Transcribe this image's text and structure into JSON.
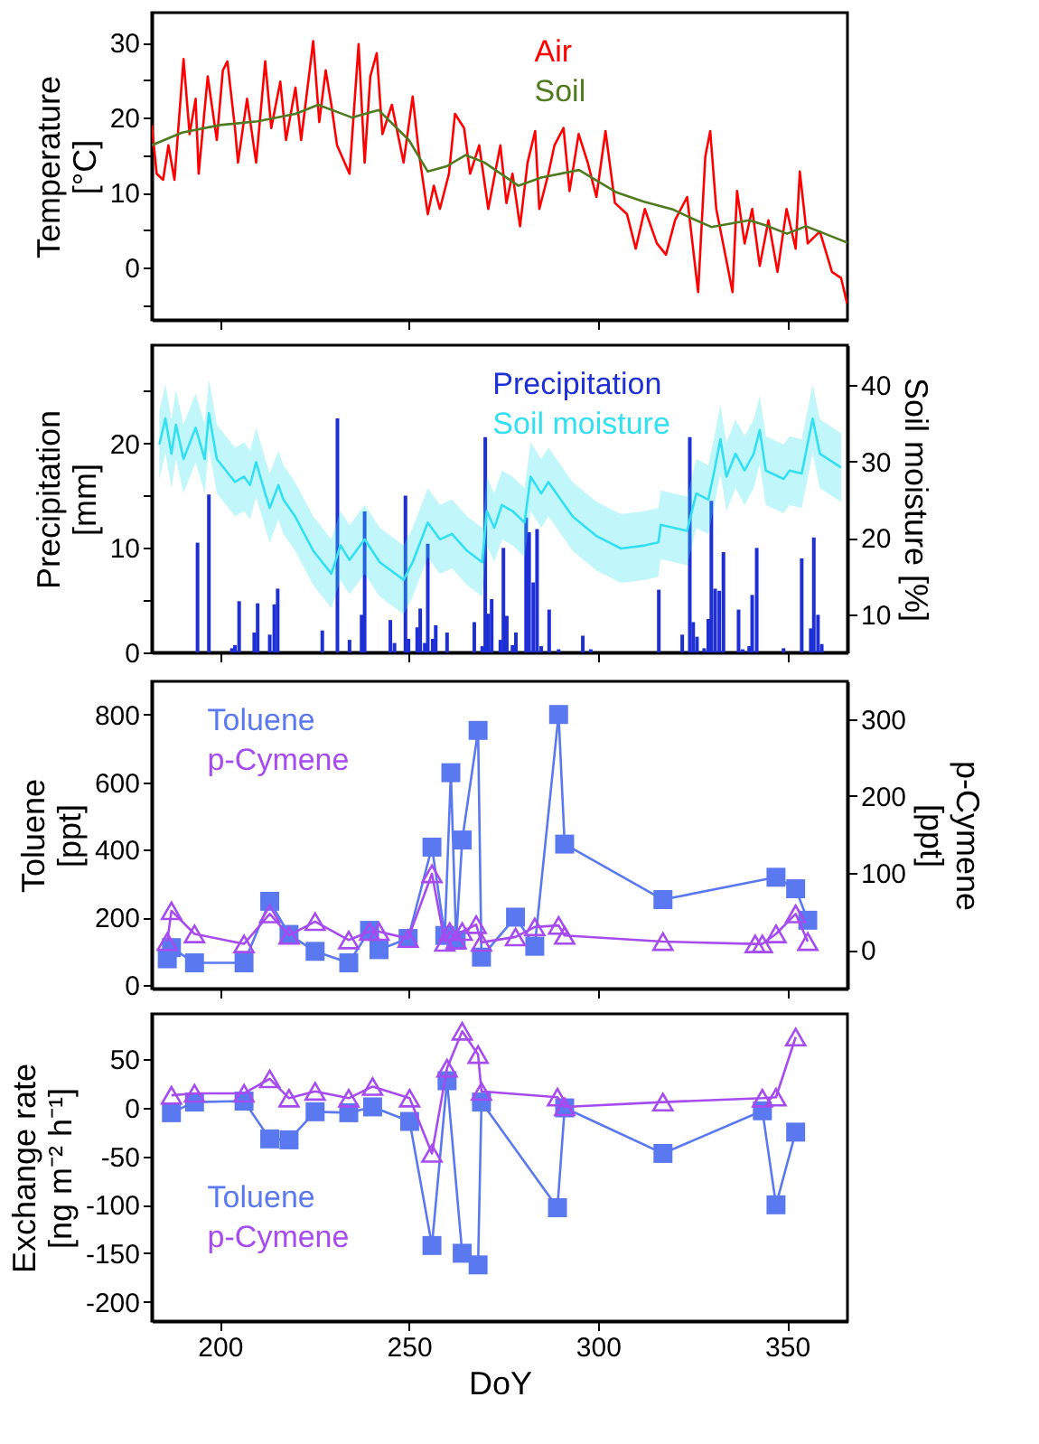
{
  "chart_data": [
    {
      "type": "line",
      "ylabel": "Temperature\n[°C]",
      "xlim": [
        182,
        366
      ],
      "xticks": [
        200,
        250,
        300,
        350
      ],
      "ylim": [
        -7,
        34
      ],
      "yticks": [
        {
          "value": -5,
          "label": null
        },
        0,
        {
          "value": 5,
          "label": null
        },
        10,
        {
          "value": 15,
          "label": null
        },
        20,
        {
          "value": 25,
          "label": null
        },
        30
      ],
      "tick_labels": "y",
      "legend": "top",
      "series": [
        {
          "name": "Air",
          "color": "#ff0000",
          "x": [
            182,
            183.3,
            185,
            186.4,
            188,
            190.4,
            192,
            193.6,
            194.4,
            196.8,
            199.2,
            200.8,
            202,
            204,
            204.8,
            207.2,
            209.6,
            212,
            213.6,
            216,
            217.5,
            220,
            221.5,
            224.7,
            226.3,
            228,
            229.5,
            231,
            234.3,
            236.7,
            238.3,
            239.8,
            241.5,
            243,
            245.5,
            248.6,
            251,
            252.6,
            255,
            256.6,
            258.2,
            260.6,
            262.2,
            264.6,
            266.2,
            268.6,
            271,
            274.2,
            275.8,
            277.4,
            279.4,
            281.4,
            283.4,
            284.5,
            286.9,
            288.5,
            290.9,
            292.5,
            294.9,
            297.3,
            299.6,
            302,
            304.5,
            307.7,
            310,
            312.4,
            315.6,
            318,
            320.4,
            323.6,
            326.5,
            328.4,
            329.7,
            331.3,
            334,
            335.6,
            336.8,
            338.8,
            340.8,
            342.8,
            345.1,
            347.5,
            349.9,
            352.3,
            353.4,
            355.5,
            358.7,
            361.9,
            364.3,
            365.9
          ],
          "values": [
            19,
            12.5,
            11.7,
            16.3,
            11.7,
            27.8,
            17.8,
            22.5,
            12.5,
            25.5,
            17,
            26.3,
            27.5,
            18.6,
            14,
            22.5,
            14,
            27.5,
            18.6,
            24.8,
            17,
            24,
            17,
            30.2,
            19.4,
            26.3,
            21.7,
            16.3,
            12.5,
            29.8,
            14,
            25.5,
            28.6,
            17.8,
            21.7,
            14,
            22.8,
            15.5,
            7.1,
            10.9,
            7.8,
            12.5,
            20.5,
            18.6,
            12.5,
            16.3,
            7.8,
            16.3,
            8.6,
            12.5,
            5.5,
            14,
            18.2,
            7.8,
            12.5,
            16.3,
            18.6,
            10.2,
            17.8,
            14,
            9.4,
            18.2,
            8.6,
            7.1,
            2.5,
            7.8,
            3.2,
            1.7,
            6.3,
            9.4,
            -3.3,
            14.8,
            18.2,
            7.8,
            0.9,
            -3.3,
            10.2,
            3.2,
            7.8,
            0.2,
            6.3,
            -0.6,
            7.8,
            2.5,
            12.8,
            3.2,
            4.8,
            -0.6,
            -1.4,
            -4.8
          ]
        },
        {
          "name": "Soil",
          "color": "#4f7a1f",
          "x": [
            182,
            190,
            200,
            210,
            220,
            226,
            235,
            242,
            250,
            255,
            260,
            265,
            270,
            279,
            285,
            295,
            300,
            305,
            312,
            320,
            325,
            330,
            340,
            345,
            350,
            355,
            360,
            366
          ],
          "values": [
            16.3,
            18,
            19,
            19.5,
            20.5,
            21.7,
            20,
            21,
            17,
            12.8,
            13.5,
            15,
            14,
            10.9,
            12,
            13,
            11.5,
            10,
            8.8,
            7.7,
            6.5,
            5.4,
            6.3,
            5.5,
            4.5,
            5.5,
            4.5,
            3.3
          ]
        }
      ]
    },
    {
      "type": "bar",
      "ylabel": "Precipitation\n[mm]",
      "y2label": "Soil moisture [%]",
      "xlim": [
        182,
        366
      ],
      "xticks": [
        200,
        250,
        300,
        350
      ],
      "ylim": [
        0,
        29.4
      ],
      "yticks": [
        0,
        {
          "value": 5,
          "label": null
        },
        10,
        {
          "value": 15,
          "label": null
        },
        20,
        {
          "value": 25,
          "label": null
        }
      ],
      "y2lim": [
        5,
        45.2
      ],
      "y2ticks": [
        10,
        20,
        30,
        40
      ],
      "tick_labels": "y",
      "legend": "top right",
      "series": [
        {
          "name": "Precipitation",
          "color": "#1f2fd6",
          "type": "bar",
          "x": [
            194.1,
            197.1,
            203.2,
            204,
            205.1,
            209.1,
            210,
            213.2,
            214.4,
            215.3,
            227.1,
            231.1,
            234.3,
            237.5,
            238.3,
            245.1,
            246.2,
            249.1,
            249.9,
            252.2,
            253,
            254.2,
            255,
            256.3,
            257.1,
            260.1,
            267.3,
            269.4,
            270.2,
            271,
            271.9,
            274.2,
            275,
            275.9,
            277.4,
            278.3,
            281,
            281.8,
            282.9,
            283.9,
            285,
            287.1,
            289.6,
            296,
            298.1,
            316.1,
            322.3,
            324.3,
            325.2,
            326.2,
            328.1,
            329.2,
            330,
            331,
            332.1,
            333.2,
            337.2,
            338.3,
            340,
            340.8,
            342,
            349.1,
            353.9,
            356.3,
            357.1,
            358.2,
            359.2
          ],
          "values": [
            10.5,
            15.1,
            0.4,
            0.7,
            4.9,
            1.9,
            4.7,
            1.7,
            4.6,
            6.1,
            2.1,
            22.4,
            1.2,
            3.6,
            13.5,
            3.1,
            0.9,
            15,
            1.3,
            2.4,
            4.2,
            0.9,
            10.4,
            1.3,
            2.6,
            1.9,
            2.9,
            0.6,
            20.6,
            3.7,
            5.1,
            1.2,
            10,
            3.5,
            0.7,
            1.9,
            12.9,
            11.5,
            6.7,
            11.8,
            0.6,
            4.1,
            0.3,
            1.6,
            0.3,
            6,
            1.7,
            20.6,
            2.9,
            1.5,
            0.4,
            3.2,
            14.5,
            6.1,
            5.9,
            9.6,
            4.1,
            0.3,
            0.6,
            5.5,
            10,
            0.4,
            9,
            2.3,
            11,
            3.6,
            0.8
          ]
        },
        {
          "name": "Soil moisture",
          "color": "#33e0f2",
          "type": "line",
          "axis": "y2",
          "x": [
            184,
            185.6,
            187.2,
            188.4,
            190.4,
            193.6,
            196,
            197.1,
            199.2,
            204,
            206.4,
            208,
            209.6,
            212,
            213.2,
            215.5,
            216.8,
            219.9,
            224.7,
            229.5,
            231.9,
            234.3,
            238.3,
            242.3,
            248.6,
            251,
            255,
            258.2,
            261.4,
            265.4,
            269.4,
            270.6,
            272.6,
            274.6,
            277.4,
            280.6,
            282.2,
            285,
            286.9,
            293.3,
            299.7,
            306.1,
            312.4,
            316,
            316.6,
            323.6,
            326,
            329.2,
            330.8,
            332.4,
            334,
            336.4,
            338.8,
            341.2,
            342.8,
            344.4,
            349.1,
            350.7,
            353.9,
            356.8,
            358.7,
            364.3
          ],
          "values": [
            32.2,
            35.6,
            31,
            34.8,
            30.3,
            34.4,
            30.3,
            36.3,
            30.3,
            27.3,
            28,
            26.9,
            29.9,
            25.8,
            23.9,
            26.9,
            25,
            22.8,
            18.3,
            15.3,
            19,
            17.1,
            19.8,
            16.8,
            14.5,
            16.8,
            22,
            19.8,
            20.5,
            18.3,
            16.8,
            23.5,
            21.3,
            24.3,
            23.5,
            22,
            28,
            25.8,
            27.3,
            22.8,
            20.2,
            18.6,
            19,
            19.4,
            21.7,
            20.9,
            25.8,
            25,
            28.8,
            32.9,
            28,
            31,
            28.8,
            31,
            34.1,
            28.8,
            27.7,
            28.8,
            28.4,
            35.6,
            31,
            29.2
          ],
          "lower": [
            27.7,
            31.1,
            26.5,
            30.3,
            25.8,
            29.9,
            25.8,
            31.8,
            25.8,
            22.8,
            23.5,
            22.4,
            25.4,
            21.3,
            19.4,
            22.4,
            20.5,
            18.3,
            13.8,
            10.8,
            14.5,
            12.6,
            15.3,
            12.3,
            10,
            12.3,
            17.5,
            15.3,
            16,
            13.8,
            12.3,
            19,
            16.8,
            19.8,
            19,
            17.5,
            23.5,
            21.3,
            22.8,
            18.3,
            15.7,
            14.1,
            14.5,
            14.9,
            17.2,
            16.4,
            21.3,
            20.5,
            24.3,
            28.4,
            23.5,
            26.5,
            24.3,
            26.5,
            29.6,
            24.3,
            23.2,
            24.3,
            23.9,
            31.1,
            26.5,
            24.7
          ],
          "upper": [
            36.7,
            40.1,
            35.5,
            39.3,
            34.8,
            38.9,
            34.8,
            40.8,
            34.8,
            31.8,
            32.5,
            31.4,
            34.4,
            30.3,
            28.4,
            31.4,
            29.5,
            27.3,
            22.8,
            19.8,
            23.5,
            21.6,
            24.3,
            21.3,
            19,
            21.3,
            26.5,
            24.3,
            25,
            22.8,
            21.3,
            28,
            25.8,
            28.8,
            28,
            26.5,
            32.5,
            30.3,
            31.8,
            27.3,
            24.7,
            23.1,
            23.5,
            23.9,
            26.2,
            25.4,
            30.3,
            29.5,
            33.3,
            37.4,
            32.5,
            35.5,
            33.3,
            35.5,
            38.6,
            33.3,
            32.2,
            33.3,
            32.9,
            40.1,
            35.5,
            33.7
          ]
        }
      ]
    },
    {
      "type": "line",
      "ylabel": "Toluene\n[ppt]",
      "y2label": "p-Cymene\n[ppt]",
      "xlim": [
        182,
        366
      ],
      "xticks": [
        200,
        250,
        300,
        350
      ],
      "ylim": [
        -10,
        898
      ],
      "yticks": [
        0,
        200,
        400,
        600,
        800
      ],
      "y2lim": [
        -50,
        349
      ],
      "y2ticks": [
        0,
        100,
        200,
        300
      ],
      "tick_labels": "y",
      "legend": "top left",
      "series": [
        {
          "name": "Toluene",
          "color": "#5a78f0",
          "marker": "square",
          "x": [
            186.1,
            187.2,
            193.3,
            206.4,
            213.2,
            218.3,
            225.2,
            234.1,
            239.6,
            242.1,
            249.8,
            256.1,
            259.5,
            261.1,
            262.5,
            264.1,
            268.3,
            269.2,
            278.2,
            283.3,
            289.6,
            291.2,
            317.2,
            347.1,
            352.3,
            355.5
          ],
          "values": [
            78,
            111,
            66,
            66,
            248,
            150,
            100,
            66,
            162,
            105,
            138,
            408,
            147,
            628,
            133,
            429,
            753,
            83,
            201,
            115,
            800,
            417,
            253,
            319,
            285,
            192
          ]
        },
        {
          "name": "p-Cymene",
          "color": "#a64bf0",
          "marker": "triangle",
          "axis": "y2",
          "x": [
            186.1,
            187.2,
            193.3,
            206.4,
            213.2,
            218.3,
            225.2,
            234.1,
            239.6,
            242.1,
            249.8,
            256.1,
            259.5,
            260.8,
            262.5,
            264.1,
            267.8,
            269.2,
            278.2,
            283.3,
            289.6,
            291.2,
            317.2,
            341.6,
            343.5,
            347.1,
            352.3,
            355.5
          ],
          "values": [
            11,
            51,
            21,
            8,
            47,
            19,
            37,
            13,
            24,
            24,
            15,
            99,
            10,
            24,
            13,
            24,
            33,
            10,
            17,
            30,
            32,
            19,
            11,
            8,
            8,
            21,
            47,
            11
          ]
        }
      ]
    },
    {
      "type": "line",
      "ylabel": "Exchange rate\n[ng m⁻² h⁻¹]",
      "xlabel": "DoY",
      "xlim": [
        182,
        366
      ],
      "xticks": [
        200,
        250,
        300,
        350
      ],
      "ylim": [
        -220,
        97
      ],
      "yticks": [
        -200,
        -150,
        -100,
        -50,
        0,
        50
      ],
      "legend": "bottom left",
      "series": [
        {
          "name": "Toluene",
          "color": "#5a78f0",
          "marker": "square",
          "x": [
            187.2,
            193.3,
            206.4,
            213.2,
            218.3,
            225.2,
            234.1,
            240.4,
            250.2,
            256.1,
            260.1,
            264.1,
            268.3,
            269.2,
            289.3,
            291.2,
            317.2,
            343.5,
            347.1,
            352.3
          ],
          "values": [
            -5,
            6,
            7,
            -32,
            -33,
            -4,
            -5,
            1,
            -14,
            -142,
            28,
            -150,
            -162,
            6,
            -103,
            0,
            -47,
            -3,
            -100,
            -25
          ]
        },
        {
          "name": "p-Cymene",
          "color": "#a64bf0",
          "marker": "triangle",
          "x": [
            187.2,
            193.3,
            206.4,
            213.2,
            218.3,
            225.2,
            234.1,
            240.4,
            250.2,
            256.1,
            260.1,
            264.1,
            268.3,
            269.2,
            289.3,
            291.2,
            317.2,
            343.5,
            347.1,
            352.3
          ],
          "values": [
            13,
            15,
            15,
            30,
            10,
            17,
            10,
            22,
            10,
            -47,
            41,
            79,
            55,
            17,
            11,
            1,
            6,
            10,
            11,
            73
          ]
        }
      ]
    }
  ]
}
